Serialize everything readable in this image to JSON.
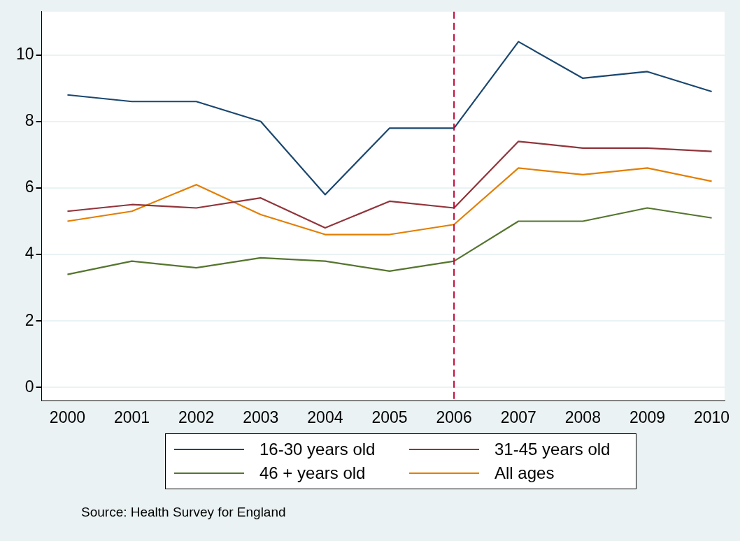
{
  "chart_data": {
    "type": "line",
    "x": [
      2000,
      2001,
      2002,
      2003,
      2004,
      2005,
      2006,
      2007,
      2008,
      2009,
      2010
    ],
    "series": [
      {
        "name": "16-30 years old",
        "color": "#1a476f",
        "values": [
          8.8,
          8.6,
          8.6,
          8.0,
          5.8,
          7.8,
          7.8,
          10.4,
          9.3,
          9.5,
          8.9
        ]
      },
      {
        "name": "31-45 years old",
        "color": "#90353b",
        "values": [
          5.3,
          5.5,
          5.4,
          5.7,
          4.8,
          5.6,
          5.4,
          7.4,
          7.2,
          7.2,
          7.1
        ]
      },
      {
        "name": "46 + years old",
        "color": "#55752f",
        "values": [
          3.4,
          3.8,
          3.6,
          3.9,
          3.8,
          3.5,
          3.8,
          5.0,
          5.0,
          5.4,
          5.1
        ]
      },
      {
        "name": "All ages",
        "color": "#e37e00",
        "values": [
          5.0,
          5.3,
          6.1,
          5.2,
          4.6,
          4.6,
          4.9,
          6.6,
          6.4,
          6.6,
          6.2
        ]
      }
    ],
    "xlim": [
      1999.6,
      2010.2
    ],
    "xticks": [
      2000,
      2001,
      2002,
      2003,
      2004,
      2005,
      2006,
      2007,
      2008,
      2009,
      2010
    ],
    "ylim": [
      -0.4,
      11.3
    ],
    "yticks": [
      0,
      2,
      4,
      6,
      8,
      10
    ],
    "grid": "y",
    "legend": "bottom",
    "marker": "none",
    "line_style": "solid",
    "ref_lines": [
      {
        "axis": "x",
        "value": 2006,
        "color": "#c10534",
        "line_style": "dashed"
      }
    ],
    "annotations": [
      "Source: Health Survey for England"
    ]
  }
}
